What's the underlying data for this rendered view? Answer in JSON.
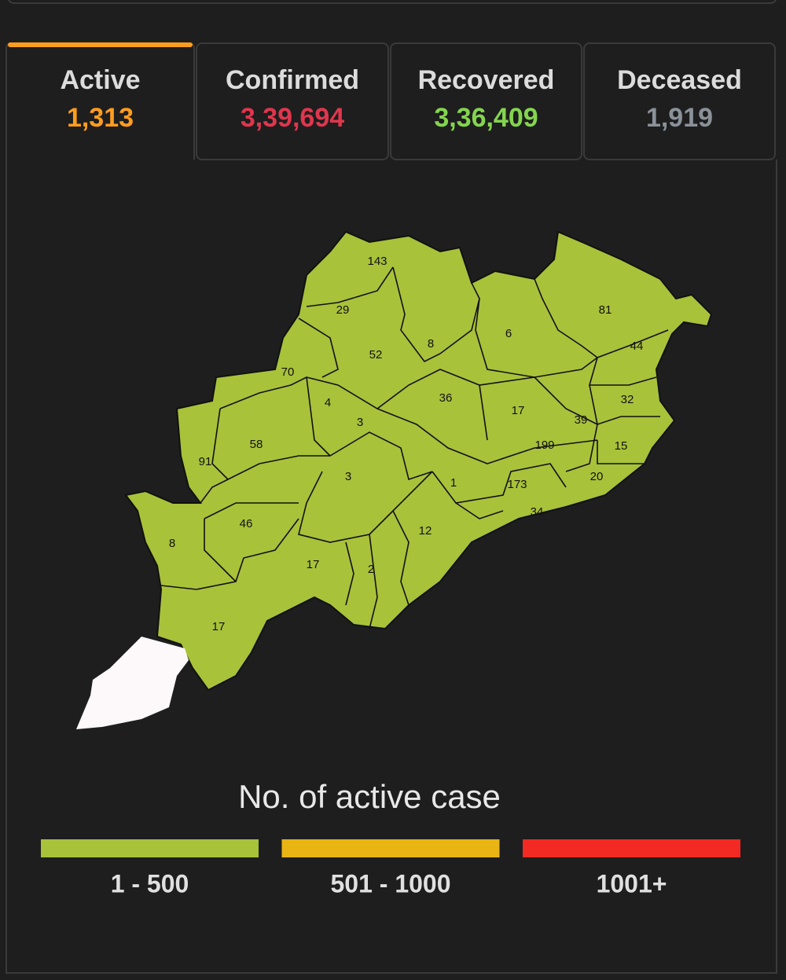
{
  "tabs": [
    {
      "label": "Active",
      "value": "1,313",
      "color": "#ff9d1e"
    },
    {
      "label": "Confirmed",
      "value": "3,39,694",
      "color": "#e0364d"
    },
    {
      "label": "Recovered",
      "value": "3,36,409",
      "color": "#84d54e"
    },
    {
      "label": "Deceased",
      "value": "1,919",
      "color": "#8a9199"
    }
  ],
  "map": {
    "fill": "#a8c23a",
    "districts": [
      "143",
      "29",
      "8",
      "52",
      "6",
      "81",
      "44",
      "70",
      "36",
      "4",
      "3",
      "17",
      "32",
      "39",
      "58",
      "91",
      "199",
      "15",
      "3",
      "1",
      "173",
      "20",
      "34",
      "46",
      "12",
      "8",
      "17",
      "2",
      "17"
    ]
  },
  "legend": {
    "title": "No. of active case",
    "items": [
      {
        "label": "1 - 500",
        "color": "#a8c23a"
      },
      {
        "label": "501 - 1000",
        "color": "#e8b514"
      },
      {
        "label": "1001+",
        "color": "#f22a23"
      }
    ]
  }
}
